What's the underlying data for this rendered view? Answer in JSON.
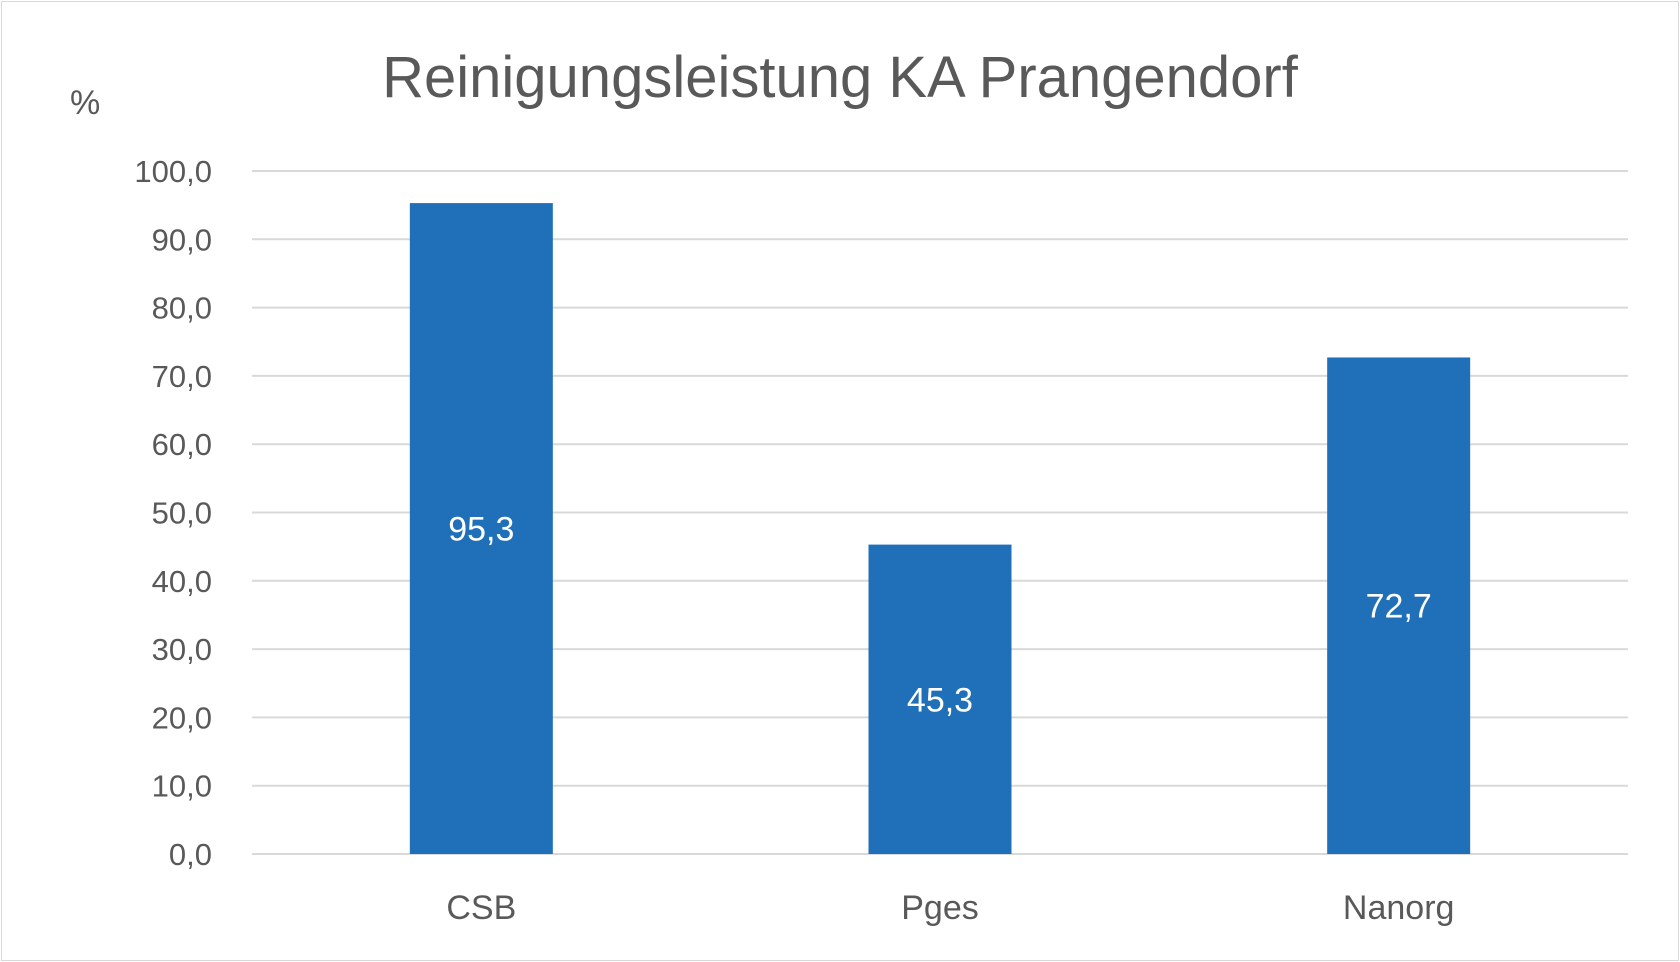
{
  "chart_data": {
    "type": "bar",
    "title": "Reinigungsleistung KA Prangendorf",
    "ylabel": "%",
    "xlabel": "",
    "categories": [
      "CSB",
      "Pges",
      "Nanorg"
    ],
    "values": [
      95.3,
      45.3,
      72.7
    ],
    "data_labels": [
      "95,3",
      "45,3",
      "72,7"
    ],
    "ylim": [
      0,
      100
    ],
    "yticks": [
      0,
      10,
      20,
      30,
      40,
      50,
      60,
      70,
      80,
      90,
      100
    ],
    "ytick_labels": [
      "0,0",
      "10,0",
      "20,0",
      "30,0",
      "40,0",
      "50,0",
      "60,0",
      "70,0",
      "80,0",
      "90,0",
      "100,0"
    ],
    "grid": true,
    "legend": "none",
    "colors": {
      "bar": "#1f70b8",
      "grid": "#d9d9d9",
      "text": "#595959",
      "data_label": "#ffffff"
    }
  }
}
